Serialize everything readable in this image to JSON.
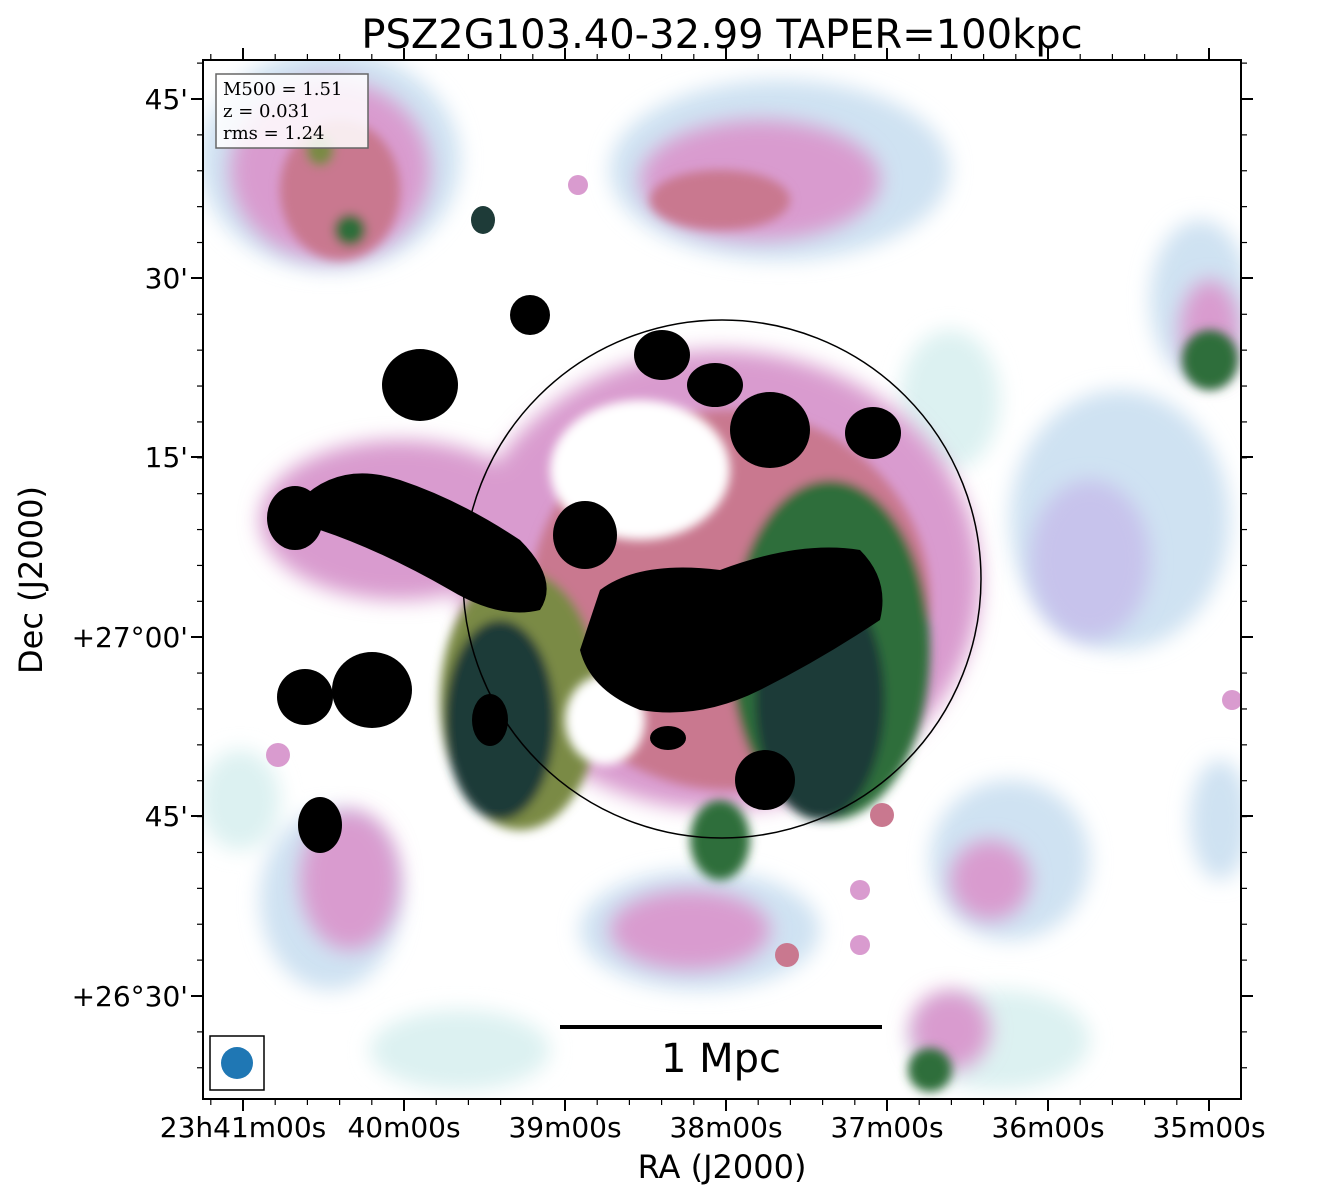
{
  "figure": {
    "title": "PSZ2G103.40-32.99 TAPER=100kpc",
    "xlabel": "RA (J2000)",
    "ylabel": "Dec (J2000)",
    "ra_ticks": [
      "23h41m00s",
      "40m00s",
      "39m00s",
      "38m00s",
      "37m00s",
      "36m00s",
      "35m00s"
    ],
    "dec_ticks": [
      "45'",
      "30'",
      "15'",
      "+27°00'",
      "45'",
      "+26°30'"
    ]
  },
  "info_box": {
    "m500": "M500 = 1.51",
    "z": "z = 0.031",
    "rms": "rms = 1.24"
  },
  "scalebar": {
    "label": "1 Mpc"
  },
  "colors": {
    "black": "#000000",
    "dark_teal": "#1e3b38",
    "green": "#2f6e3a",
    "olive": "#7a8a45",
    "rose": "#c9788f",
    "pink": "#d99bcf",
    "lavender": "#c7c3ec",
    "pale_blue": "#cfe2f2",
    "pale_cyan": "#dcf1f1",
    "beam": "#1f77b4"
  }
}
